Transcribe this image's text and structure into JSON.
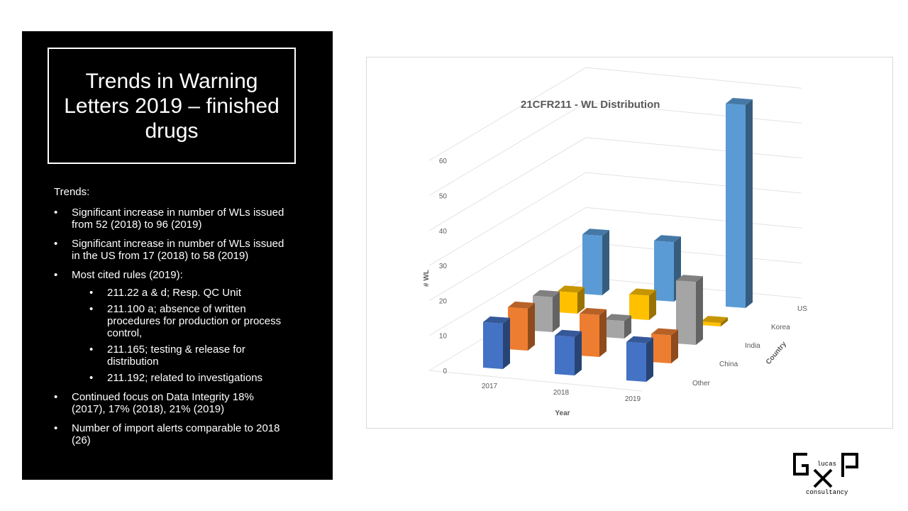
{
  "slide": {
    "title": "Trends in Warning Letters 2019 – finished drugs",
    "trends_label": "Trends:",
    "bullets": [
      "Significant increase in number of WLs issued from 52 (2018) to 96 (2019)",
      "Significant increase in number of WLs issued in the US from 17 (2018) to 58 (2019)",
      "Most cited rules (2019):",
      "Continued focus on Data Integrity 18% (2017), 17% (2018), 21% (2019)",
      "Number of import alerts comparable to 2018 (26)"
    ],
    "sub_bullets": [
      "211.22 a & d; Resp. QC Unit",
      "211.100 a; absence of written procedures for production or process control,",
      "211.165; testing & release for distribution",
      "211.192; related to investigations"
    ],
    "logo_text": [
      "lucas",
      "consultancy"
    ]
  },
  "chart_data": {
    "type": "bar",
    "subtype": "3d-column",
    "title": "21CFR211 - WL Distribution",
    "xlabel": "Year",
    "ylabel": "# WL",
    "zlabel": "Country",
    "categories": [
      "2017",
      "2018",
      "2019"
    ],
    "yticks": [
      "0",
      "10",
      "20",
      "30",
      "40",
      "50",
      "60"
    ],
    "ylim": [
      0,
      60
    ],
    "grid": true,
    "series": [
      {
        "name": "Other",
        "values": [
          13,
          11,
          11
        ],
        "color": "#4472C4"
      },
      {
        "name": "China",
        "values": [
          12,
          12,
          8
        ],
        "color": "#ED7D31"
      },
      {
        "name": "India",
        "values": [
          10,
          5,
          18
        ],
        "color": "#A5A5A5"
      },
      {
        "name": "Korea",
        "values": [
          6,
          7,
          1
        ],
        "color": "#FFC000"
      },
      {
        "name": "US",
        "values": [
          17,
          17,
          58
        ],
        "color": "#5B9BD5"
      }
    ]
  }
}
